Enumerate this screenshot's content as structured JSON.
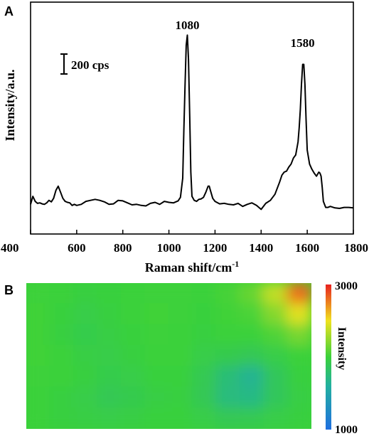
{
  "panels": {
    "a_label": "A",
    "b_label": "B"
  },
  "chart_data": [
    {
      "type": "line",
      "xlabel": "Raman shift/cm",
      "xlabel_sup": "-1",
      "ylabel": "Intensity/a.u.",
      "xlim": [
        400,
        1800
      ],
      "x_ticks": [
        "400",
        "600",
        "800",
        "1000",
        "1200",
        "1400",
        "1600",
        "1800"
      ],
      "y_ticks_labeled": false,
      "scale_bar": {
        "label": "200 cps",
        "value": 200
      },
      "peak_labels": [
        {
          "x": 1080,
          "text": "1080"
        },
        {
          "x": 1580,
          "text": "1580"
        }
      ],
      "line_color": "#000000",
      "spectrum": {
        "x": [
          400,
          410,
          420,
          430,
          440,
          450,
          460,
          470,
          480,
          490,
          500,
          510,
          520,
          530,
          540,
          550,
          560,
          570,
          580,
          590,
          600,
          620,
          640,
          660,
          680,
          700,
          720,
          740,
          760,
          780,
          800,
          820,
          840,
          860,
          880,
          900,
          920,
          940,
          960,
          980,
          1000,
          1020,
          1040,
          1050,
          1060,
          1065,
          1070,
          1075,
          1080,
          1085,
          1090,
          1095,
          1100,
          1110,
          1120,
          1130,
          1140,
          1150,
          1160,
          1170,
          1175,
          1180,
          1190,
          1200,
          1220,
          1240,
          1260,
          1280,
          1300,
          1320,
          1340,
          1360,
          1380,
          1400,
          1420,
          1440,
          1460,
          1480,
          1490,
          1500,
          1510,
          1520,
          1530,
          1540,
          1550,
          1560,
          1565,
          1570,
          1575,
          1580,
          1585,
          1590,
          1595,
          1600,
          1610,
          1620,
          1630,
          1640,
          1650,
          1655,
          1660,
          1665,
          1670,
          1680,
          1690,
          1700,
          1720,
          1740,
          1760,
          1780,
          1800
        ],
        "y": [
          160,
          240,
          190,
          170,
          175,
          165,
          160,
          175,
          200,
          185,
          220,
          300,
          340,
          280,
          220,
          190,
          180,
          175,
          150,
          160,
          150,
          160,
          190,
          200,
          210,
          200,
          185,
          160,
          165,
          200,
          195,
          175,
          155,
          160,
          150,
          145,
          170,
          180,
          160,
          190,
          180,
          175,
          195,
          230,
          420,
          900,
          1350,
          1740,
          1840,
          1600,
          1050,
          480,
          240,
          200,
          190,
          210,
          215,
          230,
          280,
          340,
          340,
          300,
          220,
          190,
          165,
          170,
          160,
          155,
          170,
          140,
          160,
          175,
          150,
          110,
          170,
          200,
          260,
          380,
          450,
          480,
          490,
          530,
          560,
          620,
          650,
          780,
          920,
          1100,
          1350,
          1550,
          1550,
          1350,
          1000,
          700,
          560,
          510,
          470,
          440,
          480,
          470,
          440,
          330,
          190,
          130,
          130,
          140,
          125,
          120,
          130,
          130,
          125
        ]
      }
    },
    {
      "type": "heatmap",
      "colorbar_label": "Intensity",
      "colorbar_max": "3000",
      "colorbar_min": "1000",
      "range": [
        1000,
        3000
      ],
      "colors": {
        "low": "#2076e0",
        "mid_low": "#22b09a",
        "mid": "#3ad13a",
        "mid_high": "#f0e21e",
        "high": "#e8211f"
      },
      "grid": [
        [
          1910,
          1900,
          1880,
          1890,
          1900,
          1910,
          1910,
          1900,
          1940,
          2050,
          2350,
          2800
        ],
        [
          1920,
          1890,
          1860,
          1880,
          1900,
          1920,
          1910,
          1890,
          1920,
          1960,
          2150,
          2450
        ],
        [
          1920,
          1880,
          1850,
          1870,
          1890,
          1910,
          1900,
          1880,
          1900,
          1900,
          1970,
          2100
        ],
        [
          1920,
          1900,
          1870,
          1860,
          1880,
          1900,
          1900,
          1860,
          1840,
          1820,
          1860,
          1900
        ],
        [
          1910,
          1900,
          1880,
          1850,
          1860,
          1890,
          1890,
          1830,
          1720,
          1640,
          1800,
          1880
        ],
        [
          1900,
          1880,
          1860,
          1820,
          1840,
          1870,
          1880,
          1820,
          1700,
          1680,
          1800,
          1870
        ],
        [
          1900,
          1880,
          1870,
          1860,
          1870,
          1890,
          1890,
          1860,
          1820,
          1830,
          1860,
          1880
        ]
      ]
    }
  ]
}
